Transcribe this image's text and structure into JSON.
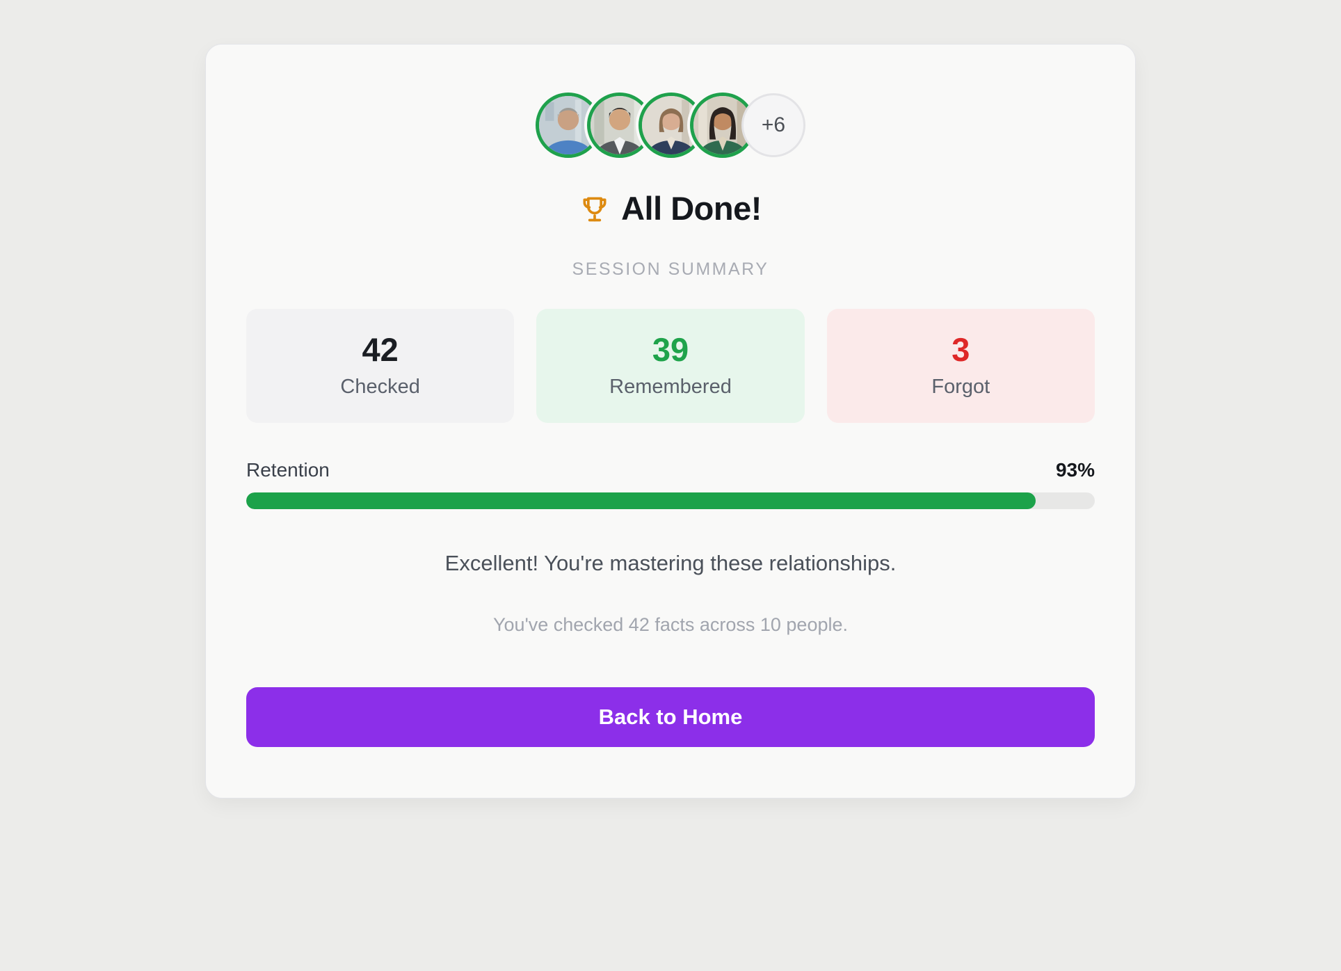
{
  "header": {
    "avatars_overflow": "+6",
    "avatar_count_visible": 4,
    "avatar_ring_color": "#1FA14C",
    "trophy_icon": "trophy-icon",
    "trophy_color": "#DD8A10",
    "title": "All Done!",
    "subtitle": "SESSION SUMMARY"
  },
  "stats": [
    {
      "value": "42",
      "label": "Checked",
      "value_color": "#1A1D22",
      "bg": "#F2F2F3"
    },
    {
      "value": "39",
      "label": "Remembered",
      "value_color": "#1FA34B",
      "bg": "#E7F6EC"
    },
    {
      "value": "3",
      "label": "Forgot",
      "value_color": "#DE2828",
      "bg": "#FBEAEA"
    }
  ],
  "retention": {
    "label": "Retention",
    "percent": 93,
    "percent_label": "93%",
    "bar_color": "#1CA24A",
    "track_color": "#E7E7E6"
  },
  "messages": {
    "primary": "Excellent! You're mastering these relationships.",
    "secondary": "You've checked 42 facts across 10 people."
  },
  "button": {
    "label": "Back to Home",
    "bg": "#8C2FE9",
    "text_color": "#FFFFFF"
  },
  "page": {
    "background": "#ECECEA",
    "card_background": "#F9F9F8"
  }
}
